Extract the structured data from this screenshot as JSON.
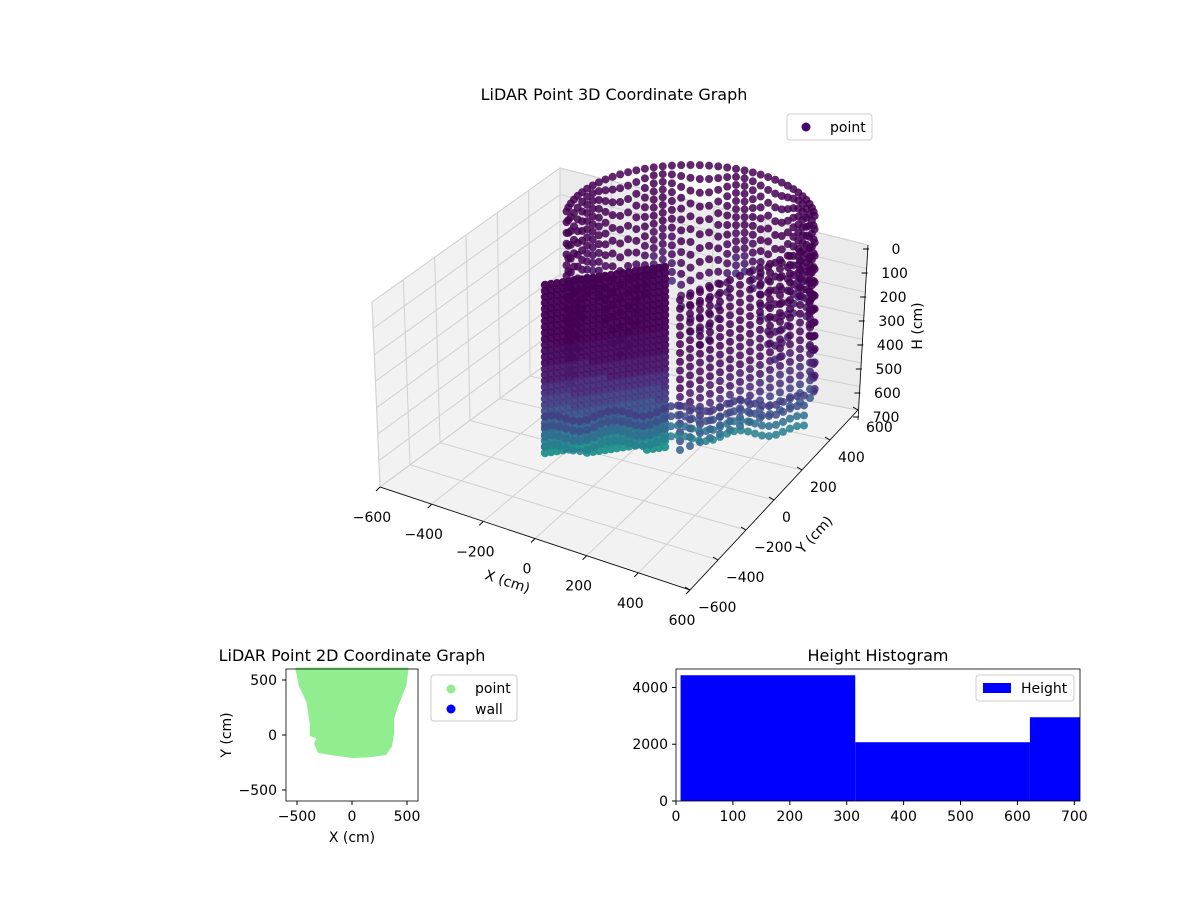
{
  "colors": {
    "point_3d": "#44086b",
    "point_2d": "#90ee90",
    "wall": "#0000ff",
    "histogram": "#0000ff",
    "pane": "#f2f2f2",
    "grid": "#d0d0d0"
  },
  "chart_data": [
    {
      "type": "scatter",
      "title": "LiDAR Point 3D Coordinate Graph",
      "projection": "3d",
      "xlabel": "X (cm)",
      "ylabel": "Y (cm)",
      "zlabel": "H (cm)",
      "x_ticks": [
        "−600",
        "−400",
        "−200",
        "0",
        "200",
        "400",
        "600"
      ],
      "y_ticks": [
        "−600",
        "−400",
        "−200",
        "0",
        "200",
        "400",
        "600"
      ],
      "z_ticks": [
        "0",
        "100",
        "200",
        "300",
        "400",
        "500",
        "600",
        "700"
      ],
      "xlim": [
        -600,
        600
      ],
      "ylim": [
        -600,
        600
      ],
      "zlim": [
        0,
        700
      ],
      "z_inverted": true,
      "grid": true,
      "colormap": "viridis",
      "legend": [
        "point"
      ],
      "legend_loc": "upper right",
      "series": [
        {
          "name": "point",
          "description_points": [
            [
              -450,
              -450,
              100
            ],
            [
              -300,
              -450,
              150
            ],
            [
              -100,
              -450,
              250
            ],
            [
              100,
              -450,
              300
            ],
            [
              -450,
              -200,
              100
            ],
            [
              -450,
              100,
              150
            ],
            [
              -400,
              400,
              100
            ],
            [
              -200,
              500,
              50
            ],
            [
              100,
              500,
              50
            ],
            [
              400,
              500,
              100
            ],
            [
              450,
              200,
              100
            ],
            [
              450,
              -100,
              150
            ],
            [
              450,
              -300,
              200
            ],
            [
              200,
              -350,
              300
            ],
            [
              0,
              0,
              650
            ],
            [
              -200,
              -300,
              600
            ],
            [
              300,
              300,
              500
            ],
            [
              -300,
              300,
              550
            ]
          ]
        }
      ]
    },
    {
      "type": "scatter",
      "title": "LiDAR Point 2D Coordinate Graph",
      "xlabel": "X (cm)",
      "ylabel": "Y (cm)",
      "x_ticks": [
        "−500",
        "0",
        "500"
      ],
      "y_ticks": [
        "−500",
        "0",
        "500"
      ],
      "xlim": [
        -600,
        600
      ],
      "ylim": [
        -600,
        600
      ],
      "legend": [
        "point",
        "wall"
      ],
      "legend_loc": "outside right",
      "series": [
        {
          "name": "point",
          "outline": [
            [
              -500,
              600
            ],
            [
              500,
              600
            ],
            [
              480,
              450
            ],
            [
              440,
              350
            ],
            [
              400,
              250
            ],
            [
              370,
              150
            ],
            [
              370,
              20
            ],
            [
              350,
              -100
            ],
            [
              300,
              -170
            ],
            [
              150,
              -190
            ],
            [
              0,
              -195
            ],
            [
              -150,
              -175
            ],
            [
              -300,
              -150
            ],
            [
              -330,
              -80
            ],
            [
              -310,
              -20
            ],
            [
              -370,
              0
            ],
            [
              -370,
              100
            ],
            [
              -400,
              300
            ],
            [
              -470,
              450
            ]
          ]
        },
        {
          "name": "wall",
          "values": []
        }
      ]
    },
    {
      "type": "bar",
      "title": "Height Histogram",
      "xlabel": "",
      "ylabel": "",
      "x_ticks": [
        "0",
        "100",
        "200",
        "300",
        "400",
        "500",
        "600",
        "700"
      ],
      "y_ticks": [
        "0",
        "2000",
        "4000"
      ],
      "xlim": [
        0,
        710
      ],
      "ylim": [
        0,
        4650
      ],
      "legend": [
        "Height"
      ],
      "legend_loc": "upper right",
      "series": [
        {
          "name": "Height",
          "bins": [
            {
              "from": 8,
              "to": 315,
              "count": 4430
            },
            {
              "from": 315,
              "to": 622,
              "count": 2070
            },
            {
              "from": 622,
              "to": 710,
              "count": 2950
            }
          ]
        }
      ]
    }
  ]
}
